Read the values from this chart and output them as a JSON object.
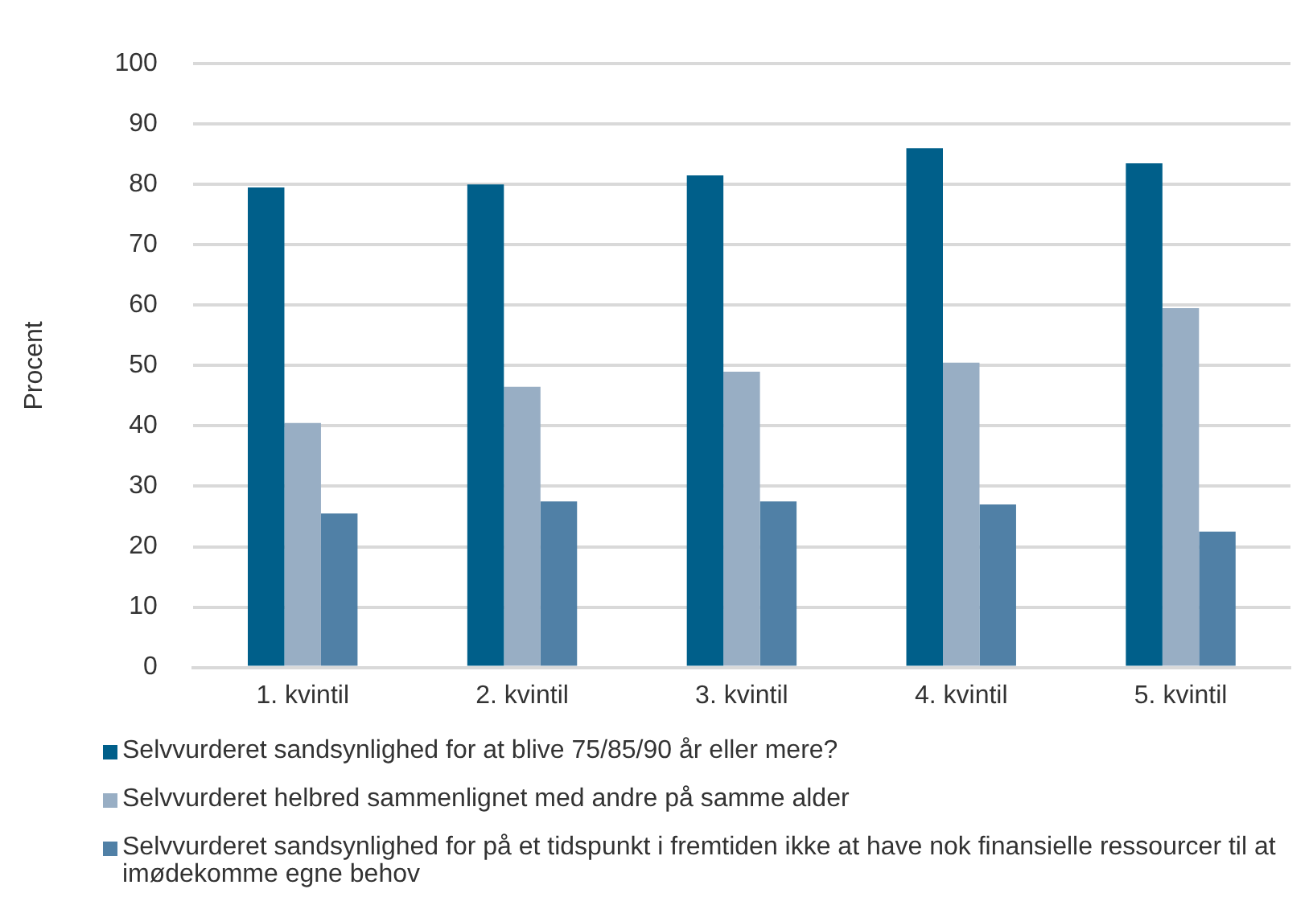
{
  "chart_data": {
    "type": "bar",
    "ylabel": "Procent",
    "categories": [
      "1. kvintil",
      "2. kvintil",
      "3. kvintil",
      "4. kvintil",
      "5. kvintil"
    ],
    "series": [
      {
        "name": "Selvvurderet sandsynlighed for at blive 75/85/90 år eller mere?",
        "color": "#005f8a",
        "values": [
          79.5,
          80,
          81.5,
          86,
          83.5
        ]
      },
      {
        "name": "Selvvurderet helbred sammenlignet med andre på samme alder",
        "color": "#98aec4",
        "values": [
          40.5,
          46.5,
          49,
          50.5,
          59.5
        ]
      },
      {
        "name": "Selvvurderet sandsynlighed for på et tidspunkt i fremtiden ikke at have nok finansielle ressourcer til at imødekomme egne behov",
        "color": "#5080a6",
        "values": [
          25.5,
          27.5,
          27.5,
          27,
          22.5
        ]
      }
    ],
    "ylim": [
      0,
      100
    ],
    "yticks": [
      0,
      10,
      20,
      30,
      40,
      50,
      60,
      70,
      80,
      90,
      100
    ],
    "grid": "y",
    "legend": "bottom"
  }
}
